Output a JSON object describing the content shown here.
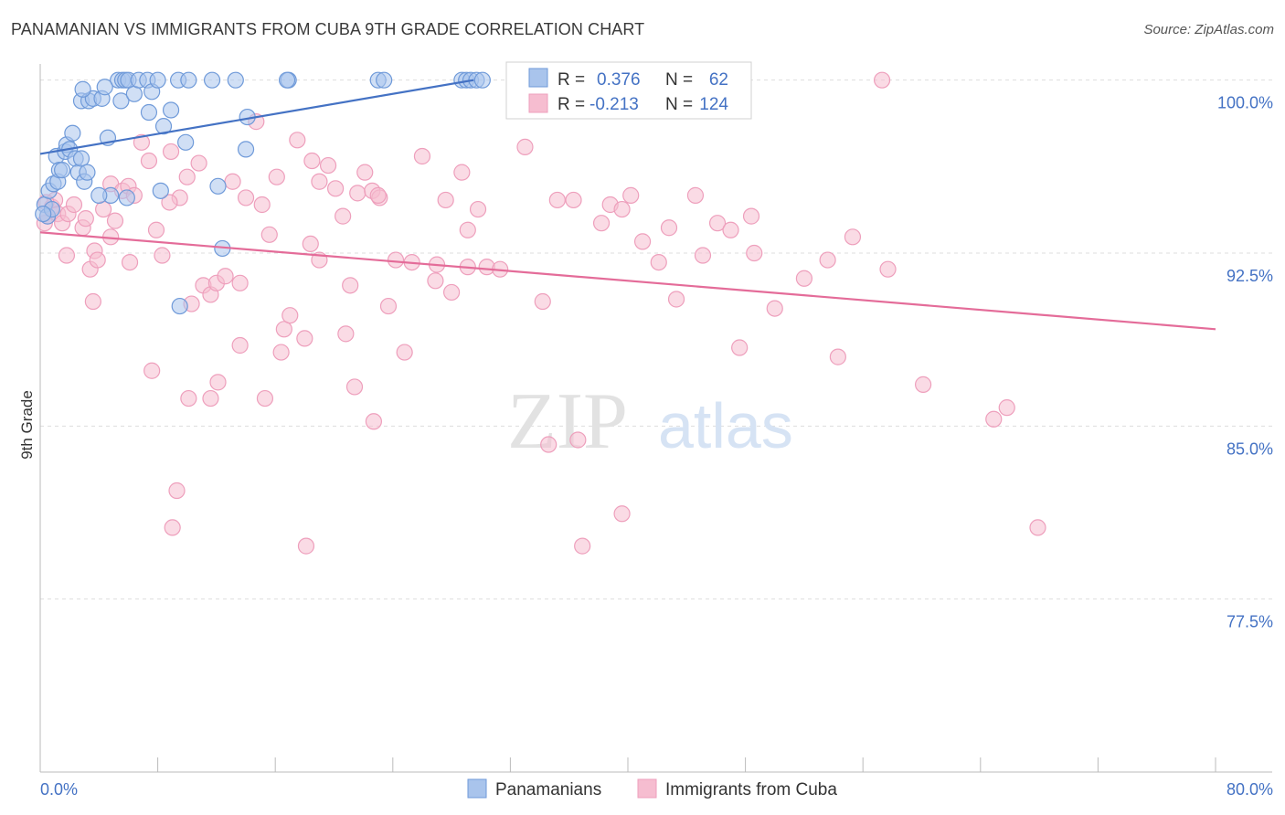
{
  "title": "PANAMANIAN VS IMMIGRANTS FROM CUBA 9TH GRADE CORRELATION CHART",
  "source": "Source: ZipAtlas.com",
  "watermark": {
    "zip": "ZIP",
    "atlas": "atlas"
  },
  "colors": {
    "blue": "#4472c4",
    "blue_fill": "#a9c4ec",
    "blue_stroke": "#6f9ad9",
    "pink": "#e46c99",
    "pink_fill": "#f6bdd0",
    "pink_stroke": "#ee9fbc",
    "grid": "#dddddd"
  },
  "legend": {
    "rows": [
      {
        "r_label": "R =",
        "r_value": "0.376",
        "n_label": "N =",
        "n_value": "62"
      },
      {
        "r_label": "R =",
        "r_value": "-0.213",
        "n_label": "N =",
        "n_value": "124"
      }
    ]
  },
  "chart_data": {
    "type": "scatter",
    "title": "PANAMANIAN VS IMMIGRANTS FROM CUBA 9TH GRADE CORRELATION CHART",
    "xlabel": "",
    "ylabel": "9th Grade",
    "xlim": [
      0,
      80
    ],
    "ylim": [
      70,
      100.7
    ],
    "x_tick_labels": [
      "0.0%",
      "80.0%"
    ],
    "y_ticks": [
      77.5,
      85.0,
      92.5,
      100.0
    ],
    "y_tick_labels": [
      "77.5%",
      "85.0%",
      "92.5%",
      "100.0%"
    ],
    "grid": true,
    "legend_position": "top-center",
    "series": [
      {
        "name": "Panamanians",
        "color": "#4472c4",
        "R": 0.376,
        "N": 62,
        "trend": [
          [
            0,
            96.8
          ],
          [
            29.5,
            100.0
          ]
        ],
        "points": [
          [
            0.3,
            94.6
          ],
          [
            0.5,
            94.1
          ],
          [
            0.6,
            95.2
          ],
          [
            0.8,
            94.4
          ],
          [
            0.9,
            95.5
          ],
          [
            1.1,
            96.7
          ],
          [
            1.2,
            95.6
          ],
          [
            1.3,
            96.1
          ],
          [
            1.5,
            96.1
          ],
          [
            1.7,
            96.9
          ],
          [
            1.8,
            97.2
          ],
          [
            2.0,
            97.0
          ],
          [
            2.2,
            97.7
          ],
          [
            2.4,
            96.6
          ],
          [
            2.6,
            96.0
          ],
          [
            2.8,
            96.6
          ],
          [
            3.0,
            95.6
          ],
          [
            3.2,
            96.0
          ],
          [
            2.8,
            99.1
          ],
          [
            3.3,
            99.1
          ],
          [
            3.6,
            99.2
          ],
          [
            4.2,
            99.2
          ],
          [
            2.9,
            99.6
          ],
          [
            4.6,
            97.5
          ],
          [
            4.8,
            95.0
          ],
          [
            5.3,
            100.0
          ],
          [
            5.6,
            100.0
          ],
          [
            5.8,
            100.0
          ],
          [
            6.0,
            100.0
          ],
          [
            5.5,
            99.1
          ],
          [
            6.4,
            99.4
          ],
          [
            4.4,
            99.7
          ],
          [
            6.7,
            100.0
          ],
          [
            7.3,
            100.0
          ],
          [
            7.6,
            99.5
          ],
          [
            8.0,
            100.0
          ],
          [
            7.4,
            98.6
          ],
          [
            8.4,
            98.0
          ],
          [
            8.2,
            95.2
          ],
          [
            8.9,
            98.7
          ],
          [
            9.4,
            100.0
          ],
          [
            10.1,
            100.0
          ],
          [
            11.7,
            100.0
          ],
          [
            9.9,
            97.3
          ],
          [
            12.1,
            95.4
          ],
          [
            13.3,
            100.0
          ],
          [
            14.1,
            98.4
          ],
          [
            14.0,
            97.0
          ],
          [
            16.9,
            100.0
          ],
          [
            16.8,
            100.0
          ],
          [
            12.4,
            92.7
          ],
          [
            9.5,
            90.2
          ],
          [
            23.0,
            100.0
          ],
          [
            23.4,
            100.0
          ],
          [
            28.7,
            100.0
          ],
          [
            29.0,
            100.0
          ],
          [
            29.3,
            100.0
          ],
          [
            29.7,
            100.0
          ],
          [
            30.1,
            100.0
          ],
          [
            4.0,
            95.0
          ],
          [
            0.2,
            94.2
          ],
          [
            5.9,
            94.9
          ]
        ]
      },
      {
        "name": "Immigrants from Cuba",
        "color": "#e46c99",
        "R": -0.213,
        "N": 124,
        "trend": [
          [
            0,
            93.4
          ],
          [
            80,
            89.2
          ]
        ],
        "points": [
          [
            0.3,
            93.8
          ],
          [
            0.5,
            94.1
          ],
          [
            0.8,
            94.5
          ],
          [
            1.0,
            94.8
          ],
          [
            1.2,
            94.2
          ],
          [
            1.5,
            93.8
          ],
          [
            1.9,
            94.2
          ],
          [
            2.3,
            94.6
          ],
          [
            2.9,
            93.6
          ],
          [
            3.1,
            94.0
          ],
          [
            3.4,
            91.8
          ],
          [
            3.7,
            92.6
          ],
          [
            3.9,
            92.2
          ],
          [
            4.3,
            94.4
          ],
          [
            4.8,
            95.5
          ],
          [
            5.1,
            93.9
          ],
          [
            5.6,
            95.2
          ],
          [
            6.0,
            95.4
          ],
          [
            6.4,
            95.0
          ],
          [
            6.9,
            97.3
          ],
          [
            7.4,
            96.5
          ],
          [
            7.9,
            93.5
          ],
          [
            8.3,
            92.4
          ],
          [
            8.9,
            96.9
          ],
          [
            9.5,
            94.9
          ],
          [
            10.0,
            95.8
          ],
          [
            10.8,
            96.4
          ],
          [
            11.1,
            91.1
          ],
          [
            11.6,
            90.7
          ],
          [
            12.0,
            91.2
          ],
          [
            12.6,
            91.5
          ],
          [
            13.1,
            95.6
          ],
          [
            13.6,
            91.2
          ],
          [
            14.0,
            94.9
          ],
          [
            14.7,
            98.2
          ],
          [
            15.1,
            94.6
          ],
          [
            15.6,
            93.3
          ],
          [
            16.1,
            95.8
          ],
          [
            16.6,
            89.2
          ],
          [
            17.0,
            89.8
          ],
          [
            17.5,
            97.4
          ],
          [
            18.0,
            88.8
          ],
          [
            18.5,
            96.5
          ],
          [
            19.0,
            95.6
          ],
          [
            19.6,
            96.3
          ],
          [
            20.1,
            95.3
          ],
          [
            20.6,
            94.1
          ],
          [
            21.1,
            91.1
          ],
          [
            21.6,
            95.1
          ],
          [
            22.1,
            96.0
          ],
          [
            22.6,
            95.2
          ],
          [
            23.1,
            94.9
          ],
          [
            23.7,
            90.2
          ],
          [
            24.2,
            92.2
          ],
          [
            24.8,
            88.2
          ],
          [
            26.0,
            96.7
          ],
          [
            27.0,
            92.0
          ],
          [
            27.6,
            94.8
          ],
          [
            28.0,
            90.8
          ],
          [
            28.7,
            96.0
          ],
          [
            29.1,
            93.5
          ],
          [
            29.8,
            94.4
          ],
          [
            30.4,
            91.9
          ],
          [
            31.3,
            91.8
          ],
          [
            33.0,
            97.1
          ],
          [
            34.2,
            90.4
          ],
          [
            35.2,
            94.8
          ],
          [
            36.3,
            94.8
          ],
          [
            36.6,
            84.4
          ],
          [
            36.9,
            79.8
          ],
          [
            38.2,
            93.8
          ],
          [
            38.8,
            94.6
          ],
          [
            39.6,
            94.4
          ],
          [
            40.2,
            95.0
          ],
          [
            41.0,
            93.0
          ],
          [
            42.1,
            92.1
          ],
          [
            42.8,
            93.6
          ],
          [
            43.3,
            90.5
          ],
          [
            44.6,
            95.0
          ],
          [
            45.1,
            92.4
          ],
          [
            46.1,
            93.8
          ],
          [
            47.0,
            93.5
          ],
          [
            47.6,
            88.4
          ],
          [
            48.4,
            94.1
          ],
          [
            48.6,
            92.5
          ],
          [
            50.0,
            90.1
          ],
          [
            52.0,
            91.4
          ],
          [
            53.6,
            92.2
          ],
          [
            54.3,
            88.0
          ],
          [
            55.3,
            93.2
          ],
          [
            57.7,
            91.8
          ],
          [
            60.1,
            86.8
          ],
          [
            64.9,
            85.3
          ],
          [
            65.8,
            85.8
          ],
          [
            67.9,
            80.6
          ],
          [
            57.3,
            100.0
          ],
          [
            9.3,
            82.2
          ],
          [
            9.0,
            80.6
          ],
          [
            18.1,
            79.8
          ],
          [
            39.6,
            81.2
          ],
          [
            34.6,
            84.2
          ],
          [
            22.7,
            85.2
          ],
          [
            12.1,
            86.9
          ],
          [
            13.6,
            88.5
          ],
          [
            11.6,
            86.2
          ],
          [
            10.1,
            86.2
          ],
          [
            15.3,
            86.2
          ],
          [
            21.4,
            86.7
          ],
          [
            7.6,
            87.4
          ],
          [
            4.8,
            93.2
          ],
          [
            6.1,
            92.1
          ],
          [
            8.8,
            94.7
          ],
          [
            10.3,
            90.3
          ],
          [
            16.4,
            88.2
          ],
          [
            18.4,
            92.9
          ],
          [
            19.0,
            92.2
          ],
          [
            20.8,
            89.0
          ],
          [
            23.0,
            95.0
          ],
          [
            25.3,
            92.1
          ],
          [
            26.9,
            91.3
          ],
          [
            29.1,
            91.9
          ],
          [
            1.8,
            92.4
          ],
          [
            3.6,
            90.4
          ],
          [
            0.4,
            94.7
          ]
        ]
      }
    ]
  }
}
